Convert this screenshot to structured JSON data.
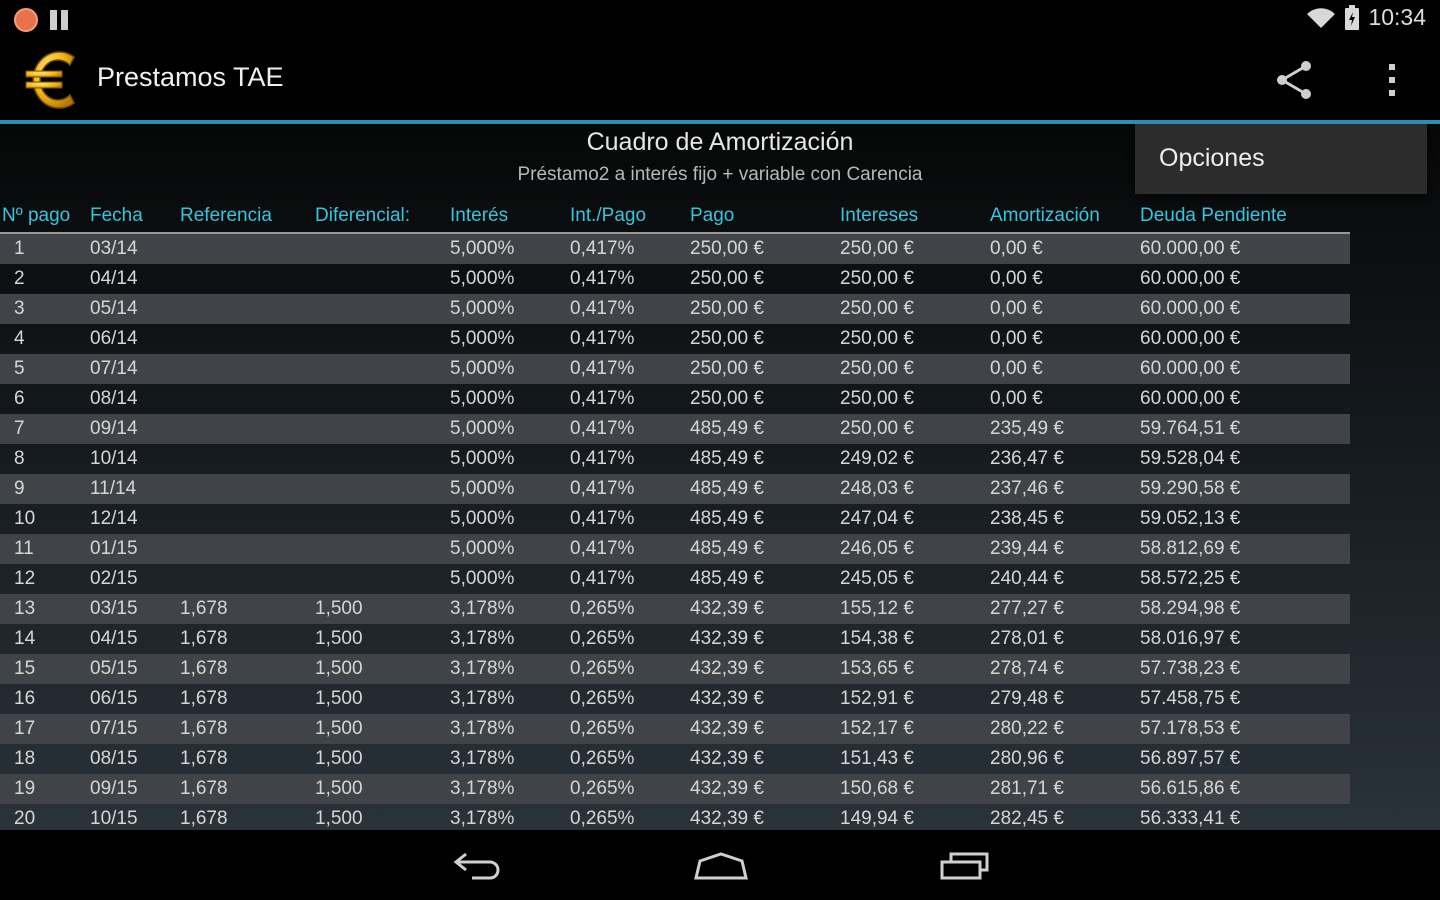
{
  "status_bar": {
    "time": "10:34"
  },
  "app": {
    "title": "Prestamos TAE"
  },
  "menu": {
    "options_label": "Opciones"
  },
  "table": {
    "title": "Cuadro de Amortización",
    "subtitle": "Préstamo2 a interés fijo + variable con Carencia",
    "headers": [
      "Nº pago",
      "Fecha",
      "Referencia",
      "Diferencial:",
      "Interés",
      "Int./Pago",
      "Pago",
      "Intereses",
      "Amortización",
      "Deuda Pendiente"
    ],
    "rows": [
      [
        "1",
        "03/14",
        "",
        "",
        "5,000%",
        "0,417%",
        "250,00 €",
        "250,00 €",
        "0,00 €",
        "60.000,00 €"
      ],
      [
        "2",
        "04/14",
        "",
        "",
        "5,000%",
        "0,417%",
        "250,00 €",
        "250,00 €",
        "0,00 €",
        "60.000,00 €"
      ],
      [
        "3",
        "05/14",
        "",
        "",
        "5,000%",
        "0,417%",
        "250,00 €",
        "250,00 €",
        "0,00 €",
        "60.000,00 €"
      ],
      [
        "4",
        "06/14",
        "",
        "",
        "5,000%",
        "0,417%",
        "250,00 €",
        "250,00 €",
        "0,00 €",
        "60.000,00 €"
      ],
      [
        "5",
        "07/14",
        "",
        "",
        "5,000%",
        "0,417%",
        "250,00 €",
        "250,00 €",
        "0,00 €",
        "60.000,00 €"
      ],
      [
        "6",
        "08/14",
        "",
        "",
        "5,000%",
        "0,417%",
        "250,00 €",
        "250,00 €",
        "0,00 €",
        "60.000,00 €"
      ],
      [
        "7",
        "09/14",
        "",
        "",
        "5,000%",
        "0,417%",
        "485,49 €",
        "250,00 €",
        "235,49 €",
        "59.764,51 €"
      ],
      [
        "8",
        "10/14",
        "",
        "",
        "5,000%",
        "0,417%",
        "485,49 €",
        "249,02 €",
        "236,47 €",
        "59.528,04 €"
      ],
      [
        "9",
        "11/14",
        "",
        "",
        "5,000%",
        "0,417%",
        "485,49 €",
        "248,03 €",
        "237,46 €",
        "59.290,58 €"
      ],
      [
        "10",
        "12/14",
        "",
        "",
        "5,000%",
        "0,417%",
        "485,49 €",
        "247,04 €",
        "238,45 €",
        "59.052,13 €"
      ],
      [
        "11",
        "01/15",
        "",
        "",
        "5,000%",
        "0,417%",
        "485,49 €",
        "246,05 €",
        "239,44 €",
        "58.812,69 €"
      ],
      [
        "12",
        "02/15",
        "",
        "",
        "5,000%",
        "0,417%",
        "485,49 €",
        "245,05 €",
        "240,44 €",
        "58.572,25 €"
      ],
      [
        "13",
        "03/15",
        "1,678",
        "1,500",
        "3,178%",
        "0,265%",
        "432,39 €",
        "155,12 €",
        "277,27 €",
        "58.294,98 €"
      ],
      [
        "14",
        "04/15",
        "1,678",
        "1,500",
        "3,178%",
        "0,265%",
        "432,39 €",
        "154,38 €",
        "278,01 €",
        "58.016,97 €"
      ],
      [
        "15",
        "05/15",
        "1,678",
        "1,500",
        "3,178%",
        "0,265%",
        "432,39 €",
        "153,65 €",
        "278,74 €",
        "57.738,23 €"
      ],
      [
        "16",
        "06/15",
        "1,678",
        "1,500",
        "3,178%",
        "0,265%",
        "432,39 €",
        "152,91 €",
        "279,48 €",
        "57.458,75 €"
      ],
      [
        "17",
        "07/15",
        "1,678",
        "1,500",
        "3,178%",
        "0,265%",
        "432,39 €",
        "152,17 €",
        "280,22 €",
        "57.178,53 €"
      ],
      [
        "18",
        "08/15",
        "1,678",
        "1,500",
        "3,178%",
        "0,265%",
        "432,39 €",
        "151,43 €",
        "280,96 €",
        "56.897,57 €"
      ],
      [
        "19",
        "09/15",
        "1,678",
        "1,500",
        "3,178%",
        "0,265%",
        "432,39 €",
        "150,68 €",
        "281,71 €",
        "56.615,86 €"
      ],
      [
        "20",
        "10/15",
        "1,678",
        "1,500",
        "3,178%",
        "0,265%",
        "432,39 €",
        "149,94 €",
        "282,45 €",
        "56.333,41 €"
      ]
    ]
  },
  "colors": {
    "accent": "#34c5e0",
    "divider": "#2a8fb0",
    "logo_gold": "#f2b818"
  },
  "icons": [
    "notification-icon",
    "storage-icon",
    "wifi-icon",
    "battery-icon",
    "euro-logo-icon",
    "share-icon",
    "overflow-menu-icon",
    "back-icon",
    "home-icon",
    "recents-icon"
  ]
}
